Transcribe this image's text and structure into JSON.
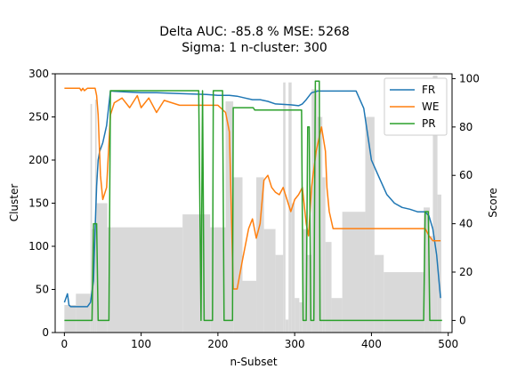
{
  "chart_data": {
    "type": "line",
    "title_line1": "Delta AUC: -85.8 %    MSE: 5268",
    "title_line2": "Sigma: 1    n-cluster: 300",
    "xlabel": "n-Subset",
    "ylabel_left": "Cluster",
    "ylabel_right": "Score",
    "xlim": [
      -12,
      505
    ],
    "ylim_left": [
      0,
      300
    ],
    "ylim_right": [
      -5,
      102
    ],
    "x_ticks": [
      0,
      100,
      200,
      300,
      400,
      500
    ],
    "y_ticks_left": [
      0,
      50,
      100,
      150,
      200,
      250,
      300
    ],
    "y_ticks_right": [
      0,
      20,
      40,
      60,
      80,
      100
    ],
    "legend": {
      "position": "top-right",
      "entries": [
        "FR",
        "WE",
        "PR"
      ]
    },
    "colors": {
      "FR": "#1f77b4",
      "WE": "#ff7f0e",
      "PR": "#2ca02c",
      "bars": "#d9d9d9"
    },
    "bars": [
      {
        "x": 0,
        "w": 15,
        "h": 32
      },
      {
        "x": 15,
        "w": 19,
        "h": 45
      },
      {
        "x": 34,
        "w": 2,
        "h": 265
      },
      {
        "x": 36,
        "w": 4,
        "h": 120
      },
      {
        "x": 40,
        "w": 2,
        "h": 270
      },
      {
        "x": 42,
        "w": 14,
        "h": 150
      },
      {
        "x": 56,
        "w": 98,
        "h": 122
      },
      {
        "x": 154,
        "w": 36,
        "h": 137
      },
      {
        "x": 190,
        "w": 20,
        "h": 122
      },
      {
        "x": 210,
        "w": 10,
        "h": 268
      },
      {
        "x": 220,
        "w": 12,
        "h": 180
      },
      {
        "x": 232,
        "w": 18,
        "h": 60
      },
      {
        "x": 250,
        "w": 10,
        "h": 180
      },
      {
        "x": 260,
        "w": 15,
        "h": 120
      },
      {
        "x": 275,
        "w": 10,
        "h": 90
      },
      {
        "x": 285,
        "w": 3,
        "h": 290
      },
      {
        "x": 288,
        "w": 4,
        "h": 15
      },
      {
        "x": 292,
        "w": 4,
        "h": 290
      },
      {
        "x": 296,
        "w": 4,
        "h": 150
      },
      {
        "x": 300,
        "w": 6,
        "h": 40
      },
      {
        "x": 306,
        "w": 4,
        "h": 35
      },
      {
        "x": 310,
        "w": 6,
        "h": 120
      },
      {
        "x": 316,
        "w": 6,
        "h": 90
      },
      {
        "x": 322,
        "w": 8,
        "h": 282
      },
      {
        "x": 330,
        "w": 6,
        "h": 250
      },
      {
        "x": 336,
        "w": 4,
        "h": 180
      },
      {
        "x": 340,
        "w": 8,
        "h": 105
      },
      {
        "x": 348,
        "w": 14,
        "h": 40
      },
      {
        "x": 362,
        "w": 30,
        "h": 140
      },
      {
        "x": 392,
        "w": 12,
        "h": 250
      },
      {
        "x": 404,
        "w": 12,
        "h": 90
      },
      {
        "x": 416,
        "w": 52,
        "h": 70
      },
      {
        "x": 468,
        "w": 8,
        "h": 145
      },
      {
        "x": 476,
        "w": 4,
        "h": 112
      },
      {
        "x": 480,
        "w": 6,
        "h": 298
      },
      {
        "x": 486,
        "w": 5,
        "h": 160
      }
    ],
    "series": [
      {
        "name": "FR",
        "axis": "left",
        "x": [
          0,
          2,
          4,
          6,
          8,
          10,
          30,
          34,
          38,
          40,
          42,
          44,
          46,
          50,
          55,
          60,
          80,
          100,
          120,
          150,
          185,
          200,
          215,
          225,
          235,
          245,
          255,
          265,
          275,
          295,
          305,
          310,
          315,
          322,
          330,
          340,
          348,
          365,
          380,
          390,
          400,
          410,
          420,
          430,
          440,
          450,
          460,
          470,
          475,
          480,
          485,
          488,
          490
        ],
        "y": [
          35,
          40,
          45,
          32,
          30,
          30,
          30,
          35,
          60,
          120,
          170,
          200,
          210,
          220,
          240,
          280,
          279,
          278,
          278,
          277,
          276,
          275,
          275,
          274,
          272,
          270,
          270,
          268,
          265,
          264,
          263,
          265,
          270,
          278,
          280,
          280,
          280,
          280,
          280,
          260,
          200,
          180,
          160,
          150,
          145,
          143,
          140,
          140,
          135,
          120,
          90,
          60,
          40
        ]
      },
      {
        "name": "WE",
        "axis": "right",
        "x": [
          0,
          20,
          22,
          24,
          26,
          30,
          35,
          40,
          42,
          44,
          47,
          50,
          55,
          60,
          65,
          75,
          85,
          95,
          100,
          110,
          120,
          130,
          150,
          170,
          190,
          200,
          210,
          215,
          220,
          225,
          232,
          240,
          245,
          250,
          255,
          260,
          265,
          270,
          275,
          280,
          285,
          290,
          295,
          300,
          305,
          310,
          315,
          318,
          322,
          328,
          335,
          340,
          342,
          345,
          350,
          370,
          400,
          430,
          460,
          470,
          475,
          480,
          490
        ],
        "y": [
          96,
          96,
          95,
          96,
          95,
          96,
          96,
          96,
          93,
          85,
          60,
          50,
          55,
          85,
          90,
          92,
          88,
          93,
          88,
          92,
          86,
          91,
          89,
          89,
          89,
          89,
          86,
          78,
          13,
          13,
          25,
          38,
          42,
          34,
          40,
          58,
          60,
          55,
          53,
          52,
          55,
          50,
          45,
          50,
          52,
          55,
          40,
          35,
          55,
          70,
          80,
          70,
          55,
          45,
          38,
          38,
          38,
          38,
          38,
          38,
          35,
          33,
          33
        ]
      },
      {
        "name": "PR",
        "axis": "right",
        "x": [
          0,
          36,
          38,
          42,
          44,
          58,
          60,
          175,
          178,
          180,
          182,
          193,
          194,
          206,
          208,
          219,
          220,
          246,
          248,
          309,
          311,
          315,
          317,
          319,
          321,
          325,
          327,
          332,
          333,
          345,
          346,
          468,
          470,
          474,
          476,
          492
        ],
        "y": [
          0,
          0,
          40,
          40,
          0,
          0,
          95,
          95,
          0,
          95,
          0,
          0,
          95,
          95,
          0,
          0,
          88,
          88,
          87,
          87,
          0,
          0,
          80,
          80,
          0,
          0,
          99,
          99,
          0,
          0,
          0,
          0,
          45,
          45,
          0,
          0
        ]
      }
    ]
  }
}
